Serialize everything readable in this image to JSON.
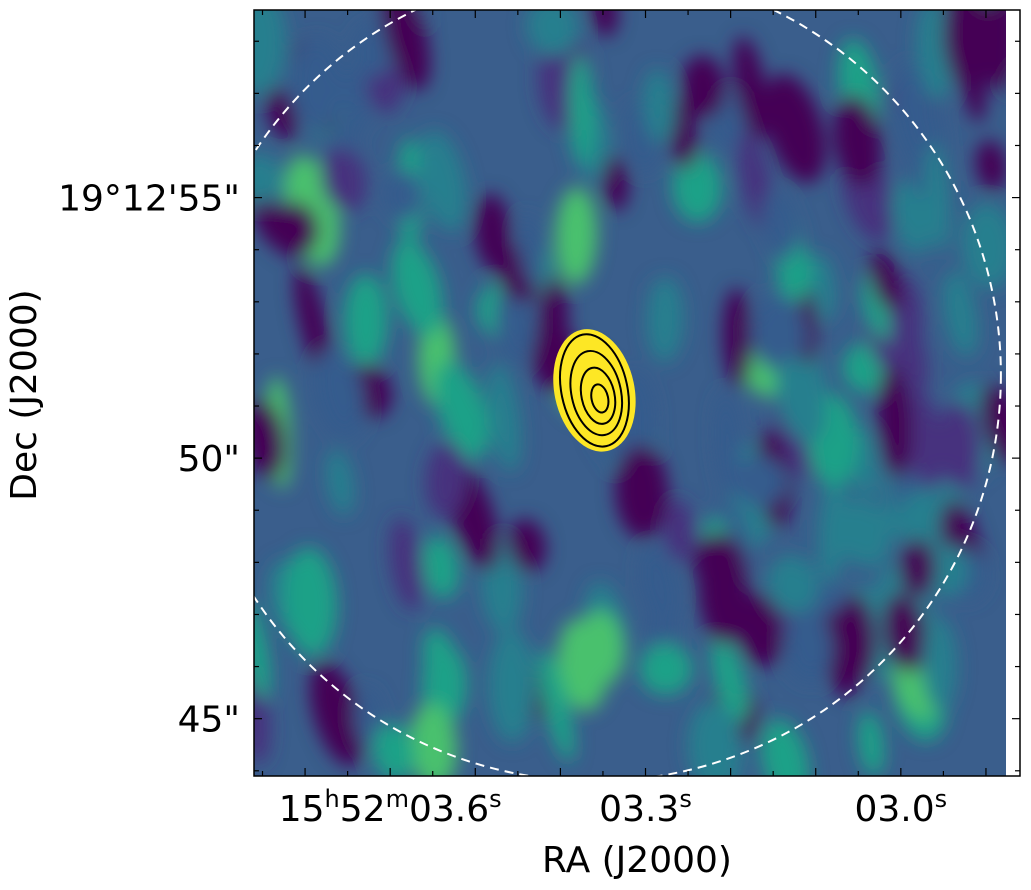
{
  "chart_data": {
    "type": "heatmap",
    "title": "",
    "xlabel": "RA (J2000)",
    "ylabel": "Dec (J2000)",
    "colormap": "viridis",
    "x_axis": {
      "ticks": [
        {
          "value_s": 3.6,
          "parts": [
            "15",
            "h",
            "52",
            "m",
            "03.6",
            "s"
          ]
        },
        {
          "value_s": 3.3,
          "parts": [
            "03.3",
            "s"
          ]
        },
        {
          "value_s": 3.0,
          "parts": [
            "03.0",
            "s"
          ]
        }
      ],
      "range_s": [
        3.76,
        2.86
      ]
    },
    "y_axis": {
      "ticks": [
        {
          "value_arcsec": 55,
          "label": "19°12'55\""
        },
        {
          "value_arcsec": 50,
          "label": "50\""
        },
        {
          "value_arcsec": 45,
          "label": "45\""
        }
      ],
      "range_arcsec": [
        43.9,
        58.6
      ]
    },
    "source": {
      "ra_s": 3.36,
      "dec_arcsec": 51.3,
      "contour_levels": 4,
      "contour_color": "#000000",
      "peak_color": "#fde725"
    },
    "primary_beam_circle": {
      "center_ra_s": 3.36,
      "center_dec_arcsec": 51.6,
      "radius_arcsec": 7.8,
      "style": "dashed",
      "color": "#ffffff"
    },
    "grid": false
  }
}
